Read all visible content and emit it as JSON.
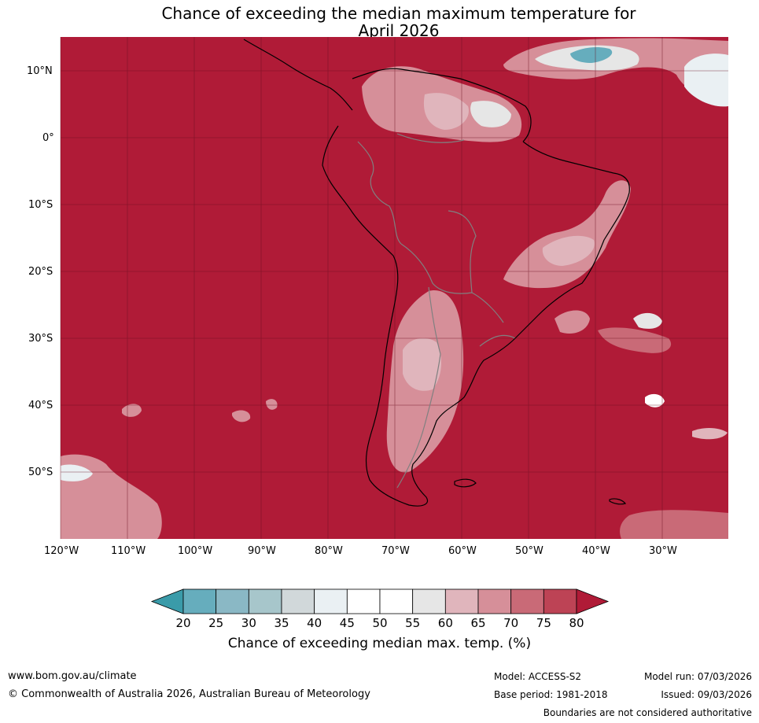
{
  "title_line1": "Chance of exceeding the median maximum temperature for",
  "title_line2": "April 2026",
  "lat_labels": [
    "10°N",
    "0°",
    "10°S",
    "20°S",
    "30°S",
    "40°S",
    "50°S"
  ],
  "lon_labels": [
    "120°W",
    "110°W",
    "100°W",
    "90°W",
    "80°W",
    "70°W",
    "60°W",
    "50°W",
    "40°W",
    "30°W"
  ],
  "colorbar": {
    "ticks": [
      "20",
      "25",
      "30",
      "35",
      "40",
      "45",
      "50",
      "55",
      "60",
      "65",
      "70",
      "75",
      "80"
    ],
    "colors": [
      "#3a9ba9",
      "#66adbd",
      "#8ab8c5",
      "#a7c6cb",
      "#d1d8da",
      "#eaf0f3",
      "#ffffff",
      "#ffffff",
      "#e6e6e6",
      "#e0b5bc",
      "#d68f99",
      "#c96a77",
      "#bd4355",
      "#b01b37"
    ],
    "label": "Chance of exceeding median max. temp. (%)"
  },
  "map_colors": {
    "dominant": "#b01b37",
    "land_border": "#000000",
    "country_border": "#808080"
  },
  "footer": {
    "website": "www.bom.gov.au/climate",
    "copyright": "© Commonwealth of Australia 2026, Australian Bureau of Meteorology",
    "model": "Model: ACCESS-S2",
    "base_period": "Base period: 1981-2018",
    "model_run": "Model run: 07/03/2026",
    "issued": "Issued: 09/03/2026",
    "disclaimer": "Boundaries are not considered authoritative"
  }
}
